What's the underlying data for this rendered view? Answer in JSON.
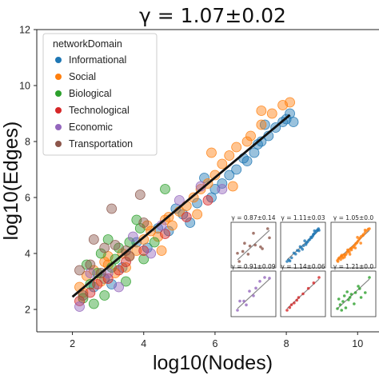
{
  "chart_data": {
    "type": "scatter",
    "title": "γ =  1.07±0.02",
    "xlabel": "log10(Nodes)",
    "ylabel": "log10(Edges)",
    "xlim": [
      1.0,
      10.6
    ],
    "ylim": [
      1.2,
      12.0
    ],
    "xticks": [
      "2",
      "4",
      "6",
      "8",
      "10"
    ],
    "yticks": [
      "2",
      "4",
      "6",
      "8",
      "10",
      "12"
    ],
    "legend_title": "networkDomain",
    "legend_position": "upper-left",
    "colors": {
      "Informational": "#1f77b4",
      "Social": "#ff7f0e",
      "Biological": "#2ca02c",
      "Technological": "#d62728",
      "Economic": "#9467bd",
      "Transportation": "#8c564b"
    },
    "fit_line": {
      "x": [
        2.0,
        8.1
      ],
      "y": [
        2.45,
        8.95
      ]
    },
    "series": [
      {
        "name": "Informational",
        "points": [
          [
            2.9,
            3.1
          ],
          [
            3.4,
            3.5
          ],
          [
            4.1,
            4.2
          ],
          [
            4.7,
            4.8
          ],
          [
            5.1,
            5.4
          ],
          [
            5.5,
            5.8
          ],
          [
            5.9,
            6.0
          ],
          [
            6.2,
            6.5
          ],
          [
            6.6,
            7.0
          ],
          [
            6.9,
            7.3
          ],
          [
            7.1,
            7.6
          ],
          [
            7.3,
            8.0
          ],
          [
            7.5,
            8.2
          ],
          [
            7.7,
            8.5
          ],
          [
            7.9,
            8.7
          ],
          [
            8.0,
            8.8
          ],
          [
            8.1,
            9.0
          ],
          [
            7.4,
            8.6
          ],
          [
            5.3,
            5.1
          ],
          [
            6.0,
            6.3
          ],
          [
            4.4,
            4.9
          ],
          [
            3.8,
            4.4
          ],
          [
            2.6,
            2.8
          ],
          [
            3.1,
            2.9
          ],
          [
            5.7,
            6.7
          ],
          [
            6.4,
            6.8
          ],
          [
            7.2,
            7.9
          ],
          [
            4.9,
            5.6
          ],
          [
            8.2,
            8.7
          ],
          [
            6.8,
            7.4
          ]
        ]
      },
      {
        "name": "Social",
        "points": [
          [
            2.2,
            2.8
          ],
          [
            2.4,
            3.2
          ],
          [
            2.6,
            3.4
          ],
          [
            2.8,
            3.0
          ],
          [
            3.0,
            3.6
          ],
          [
            3.2,
            3.3
          ],
          [
            3.4,
            4.0
          ],
          [
            3.6,
            3.9
          ],
          [
            3.8,
            4.1
          ],
          [
            4.0,
            4.5
          ],
          [
            4.2,
            4.8
          ],
          [
            4.4,
            4.6
          ],
          [
            4.6,
            5.2
          ],
          [
            4.8,
            5.0
          ],
          [
            5.0,
            5.5
          ],
          [
            5.2,
            5.7
          ],
          [
            5.4,
            6.0
          ],
          [
            5.6,
            6.3
          ],
          [
            5.8,
            6.5
          ],
          [
            6.0,
            6.8
          ],
          [
            6.2,
            7.2
          ],
          [
            6.4,
            7.5
          ],
          [
            6.6,
            7.8
          ],
          [
            7.0,
            8.2
          ],
          [
            7.3,
            8.6
          ],
          [
            7.6,
            9.0
          ],
          [
            7.9,
            9.3
          ],
          [
            6.5,
            6.4
          ],
          [
            4.5,
            4.1
          ],
          [
            3.0,
            3.9
          ],
          [
            5.9,
            7.6
          ],
          [
            6.9,
            8.0
          ],
          [
            2.3,
            2.6
          ],
          [
            3.5,
            3.5
          ],
          [
            4.1,
            5.0
          ],
          [
            5.5,
            5.4
          ],
          [
            7.3,
            9.1
          ],
          [
            8.1,
            9.4
          ],
          [
            2.9,
            3.7
          ],
          [
            4.7,
            5.3
          ]
        ]
      },
      {
        "name": "Biological",
        "points": [
          [
            2.3,
            2.4
          ],
          [
            2.5,
            2.9
          ],
          [
            2.7,
            3.3
          ],
          [
            3.0,
            4.5
          ],
          [
            3.3,
            4.2
          ],
          [
            3.6,
            4.4
          ],
          [
            2.8,
            4.0
          ],
          [
            3.2,
            3.8
          ],
          [
            3.5,
            3.0
          ],
          [
            4.0,
            3.8
          ],
          [
            3.8,
            5.2
          ],
          [
            4.3,
            4.4
          ],
          [
            2.6,
            2.2
          ],
          [
            3.1,
            3.5
          ],
          [
            4.6,
            6.3
          ],
          [
            3.9,
            4.9
          ],
          [
            2.9,
            2.5
          ],
          [
            2.4,
            3.6
          ]
        ]
      },
      {
        "name": "Technological",
        "points": [
          [
            2.5,
            2.6
          ],
          [
            3.0,
            3.1
          ],
          [
            3.5,
            3.7
          ],
          [
            4.0,
            4.1
          ],
          [
            4.6,
            4.7
          ],
          [
            5.2,
            5.3
          ],
          [
            5.8,
            5.9
          ],
          [
            2.7,
            2.9
          ],
          [
            3.3,
            3.4
          ],
          [
            2.2,
            2.3
          ]
        ]
      },
      {
        "name": "Economic",
        "points": [
          [
            2.5,
            3.3
          ],
          [
            3.0,
            3.3
          ],
          [
            3.7,
            4.6
          ],
          [
            4.5,
            5.0
          ],
          [
            5.0,
            5.9
          ],
          [
            5.6,
            6.4
          ],
          [
            4.2,
            4.0
          ],
          [
            3.3,
            2.8
          ],
          [
            6.2,
            6.3
          ],
          [
            2.2,
            2.1
          ]
        ]
      },
      {
        "name": "Transportation",
        "points": [
          [
            2.2,
            3.4
          ],
          [
            2.5,
            3.6
          ],
          [
            2.9,
            4.2
          ],
          [
            3.2,
            4.3
          ],
          [
            3.5,
            4.1
          ],
          [
            3.9,
            6.1
          ],
          [
            3.1,
            5.6
          ],
          [
            2.6,
            4.5
          ],
          [
            2.3,
            2.5
          ],
          [
            4.0,
            5.1
          ],
          [
            2.8,
            3.3
          ],
          [
            3.6,
            3.9
          ]
        ]
      }
    ],
    "insets": [
      {
        "label": "γ = 0.87±0.14",
        "domain": "Transportation"
      },
      {
        "label": "γ = 1.11±0.03",
        "domain": "Informational"
      },
      {
        "label": "γ = 1.05±0.0",
        "domain": "Social"
      },
      {
        "label": "γ = 0.91±0.09",
        "domain": "Economic"
      },
      {
        "label": "γ = 1.14±0.06",
        "domain": "Technological"
      },
      {
        "label": "γ = 1.21±0.0",
        "domain": "Biological"
      }
    ]
  }
}
